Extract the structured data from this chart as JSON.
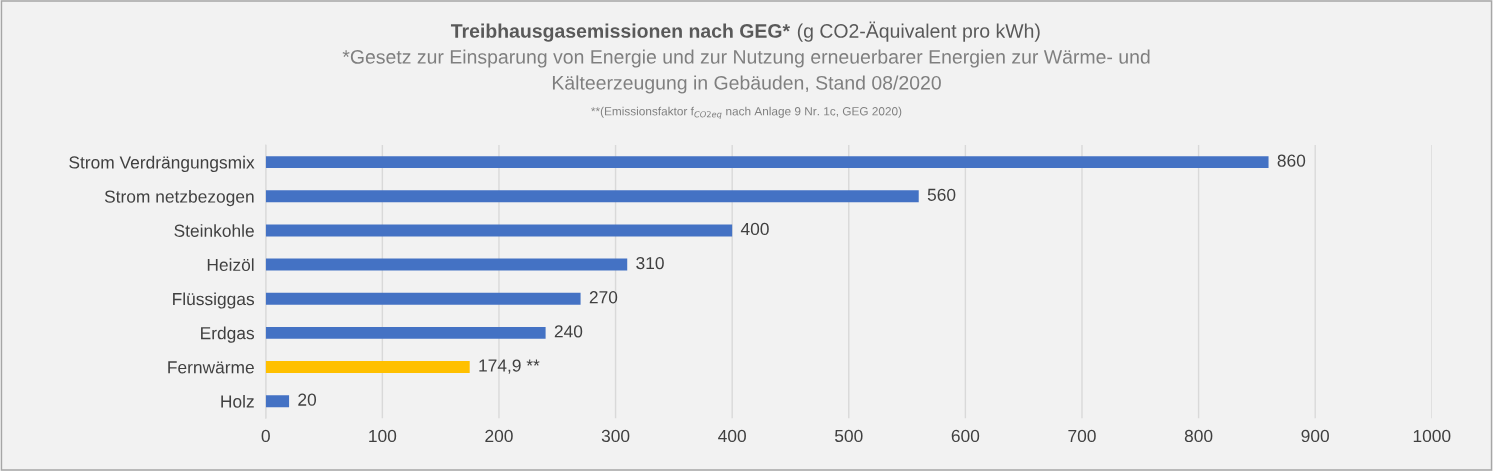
{
  "chart_data": {
    "type": "bar",
    "orientation": "horizontal",
    "title": "Treibhausgasemissionen nach GEG*",
    "subtitle": "(g CO2-Äquivalent pro kWh)",
    "annotations": [
      "*Gesetz zur Einsparung von Energie und zur Nutzung erneuerbarer Energien zur Wärme- und",
      "Kälteerzeugung in Gebäuden, Stand 08/2020",
      "**(Emissionsfaktor f$_{CO2eq}$ nach Anlage 9 Nr. 1c, GEG 2020)"
    ],
    "categories": [
      "Strom Verdrängungsmix",
      "Strom netzbezogen",
      "Steinkohle",
      "Heizöl",
      "Flüssiggas",
      "Erdgas",
      "Fernwärme",
      "Holz"
    ],
    "values": [
      860,
      560,
      400,
      310,
      270,
      240,
      174.9,
      20
    ],
    "colors": [
      "#4472c4",
      "#4472c4",
      "#4472c4",
      "#4472c4",
      "#4472c4",
      "#4472c4",
      "#ffc000",
      "#4472c4"
    ],
    "value_labels": [
      "860",
      "560",
      "400",
      "310",
      "270",
      "240",
      "174,9 **",
      "20"
    ],
    "xlim": [
      0,
      1000
    ],
    "xticks": [
      0,
      100,
      200,
      300,
      400,
      500,
      600,
      700,
      800,
      900,
      1000
    ],
    "grid": "x"
  }
}
